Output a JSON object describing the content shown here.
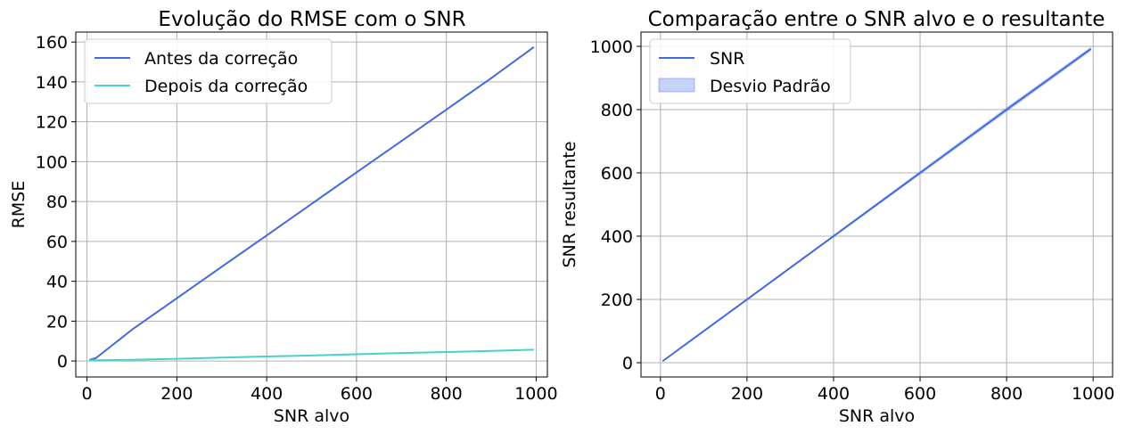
{
  "chart_data": [
    {
      "type": "line",
      "title": "Evolução do RMSE com o SNR",
      "xlabel": "SNR alvo",
      "ylabel": "RMSE",
      "xlim": [
        -25,
        1025
      ],
      "ylim": [
        -8,
        165
      ],
      "xticks": [
        0,
        200,
        400,
        600,
        800,
        1000
      ],
      "yticks": [
        0,
        20,
        40,
        60,
        80,
        100,
        120,
        140,
        160
      ],
      "grid": true,
      "legend_position": "top-left",
      "series": [
        {
          "name": "Antes da correção",
          "color": "#4169e1",
          "x": [
            5,
            20,
            100,
            200,
            300,
            400,
            500,
            600,
            700,
            800,
            900,
            995
          ],
          "y": [
            0.5,
            1.5,
            15.7,
            31.5,
            47.3,
            63.0,
            78.8,
            94.6,
            110.3,
            126.1,
            141.9,
            157.5
          ]
        },
        {
          "name": "Depois da correção",
          "color": "#48d1cc",
          "x": [
            5,
            100,
            200,
            300,
            400,
            500,
            600,
            700,
            800,
            900,
            995
          ],
          "y": [
            0.3,
            0.6,
            1.1,
            1.7,
            2.3,
            2.8,
            3.4,
            4.0,
            4.5,
            5.1,
            5.7
          ]
        }
      ]
    },
    {
      "type": "line",
      "title": "Comparação entre o SNR alvo e o resultante",
      "xlabel": "SNR alvo",
      "ylabel": "SNR resultante",
      "xlim": [
        -45,
        1045
      ],
      "ylim": [
        -45,
        1045
      ],
      "xticks": [
        0,
        200,
        400,
        600,
        800,
        1000
      ],
      "yticks": [
        0,
        200,
        400,
        600,
        800,
        1000
      ],
      "grid": true,
      "legend_position": "top-left",
      "series": [
        {
          "name": "SNR",
          "color": "#4169e1",
          "x": [
            5,
            200,
            400,
            600,
            800,
            995
          ],
          "y": [
            5,
            200,
            400,
            600,
            800,
            992
          ]
        },
        {
          "name": "Desvio Padrão",
          "type": "band",
          "color": "#4169e1",
          "x": [
            5,
            200,
            400,
            600,
            800,
            995
          ],
          "lower": [
            4,
            198,
            396,
            594,
            792,
            985
          ],
          "upper": [
            6,
            202,
            404,
            606,
            808,
            999
          ]
        }
      ]
    }
  ]
}
